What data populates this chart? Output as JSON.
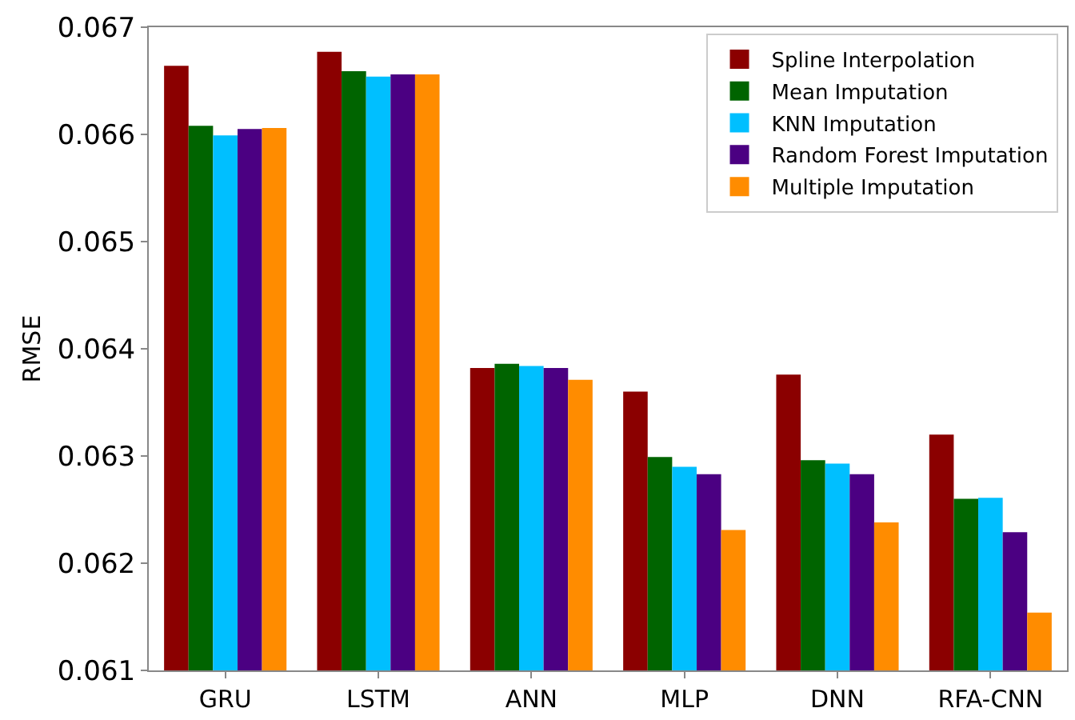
{
  "chart_data": {
    "type": "bar",
    "ylabel": "RMSE",
    "categories": [
      "GRU",
      "LSTM",
      "ANN",
      "MLP",
      "DNN",
      "RFA-CNN"
    ],
    "series": [
      {
        "name": "Spline Interpolation",
        "color": "#8b0000",
        "values": [
          0.06664,
          0.06677,
          0.06382,
          0.0636,
          0.06376,
          0.0632
        ]
      },
      {
        "name": "Mean Imputation",
        "color": "#006400",
        "values": [
          0.06608,
          0.06659,
          0.06386,
          0.06299,
          0.06296,
          0.0626
        ]
      },
      {
        "name": "KNN Imputation",
        "color": "#00bfff",
        "values": [
          0.06599,
          0.06654,
          0.06384,
          0.0629,
          0.06293,
          0.06261
        ]
      },
      {
        "name": "Random Forest Imputation",
        "color": "#4b0082",
        "values": [
          0.06605,
          0.06656,
          0.06382,
          0.06283,
          0.06283,
          0.06229
        ]
      },
      {
        "name": "Multiple Imputation",
        "color": "#ff8c00",
        "values": [
          0.06606,
          0.06656,
          0.06371,
          0.06231,
          0.06238,
          0.06154
        ]
      }
    ],
    "ylim": [
      0.061,
      0.067
    ],
    "yticks": [
      0.061,
      0.062,
      0.063,
      0.064,
      0.065,
      0.066,
      0.067
    ],
    "legend": "top right"
  }
}
